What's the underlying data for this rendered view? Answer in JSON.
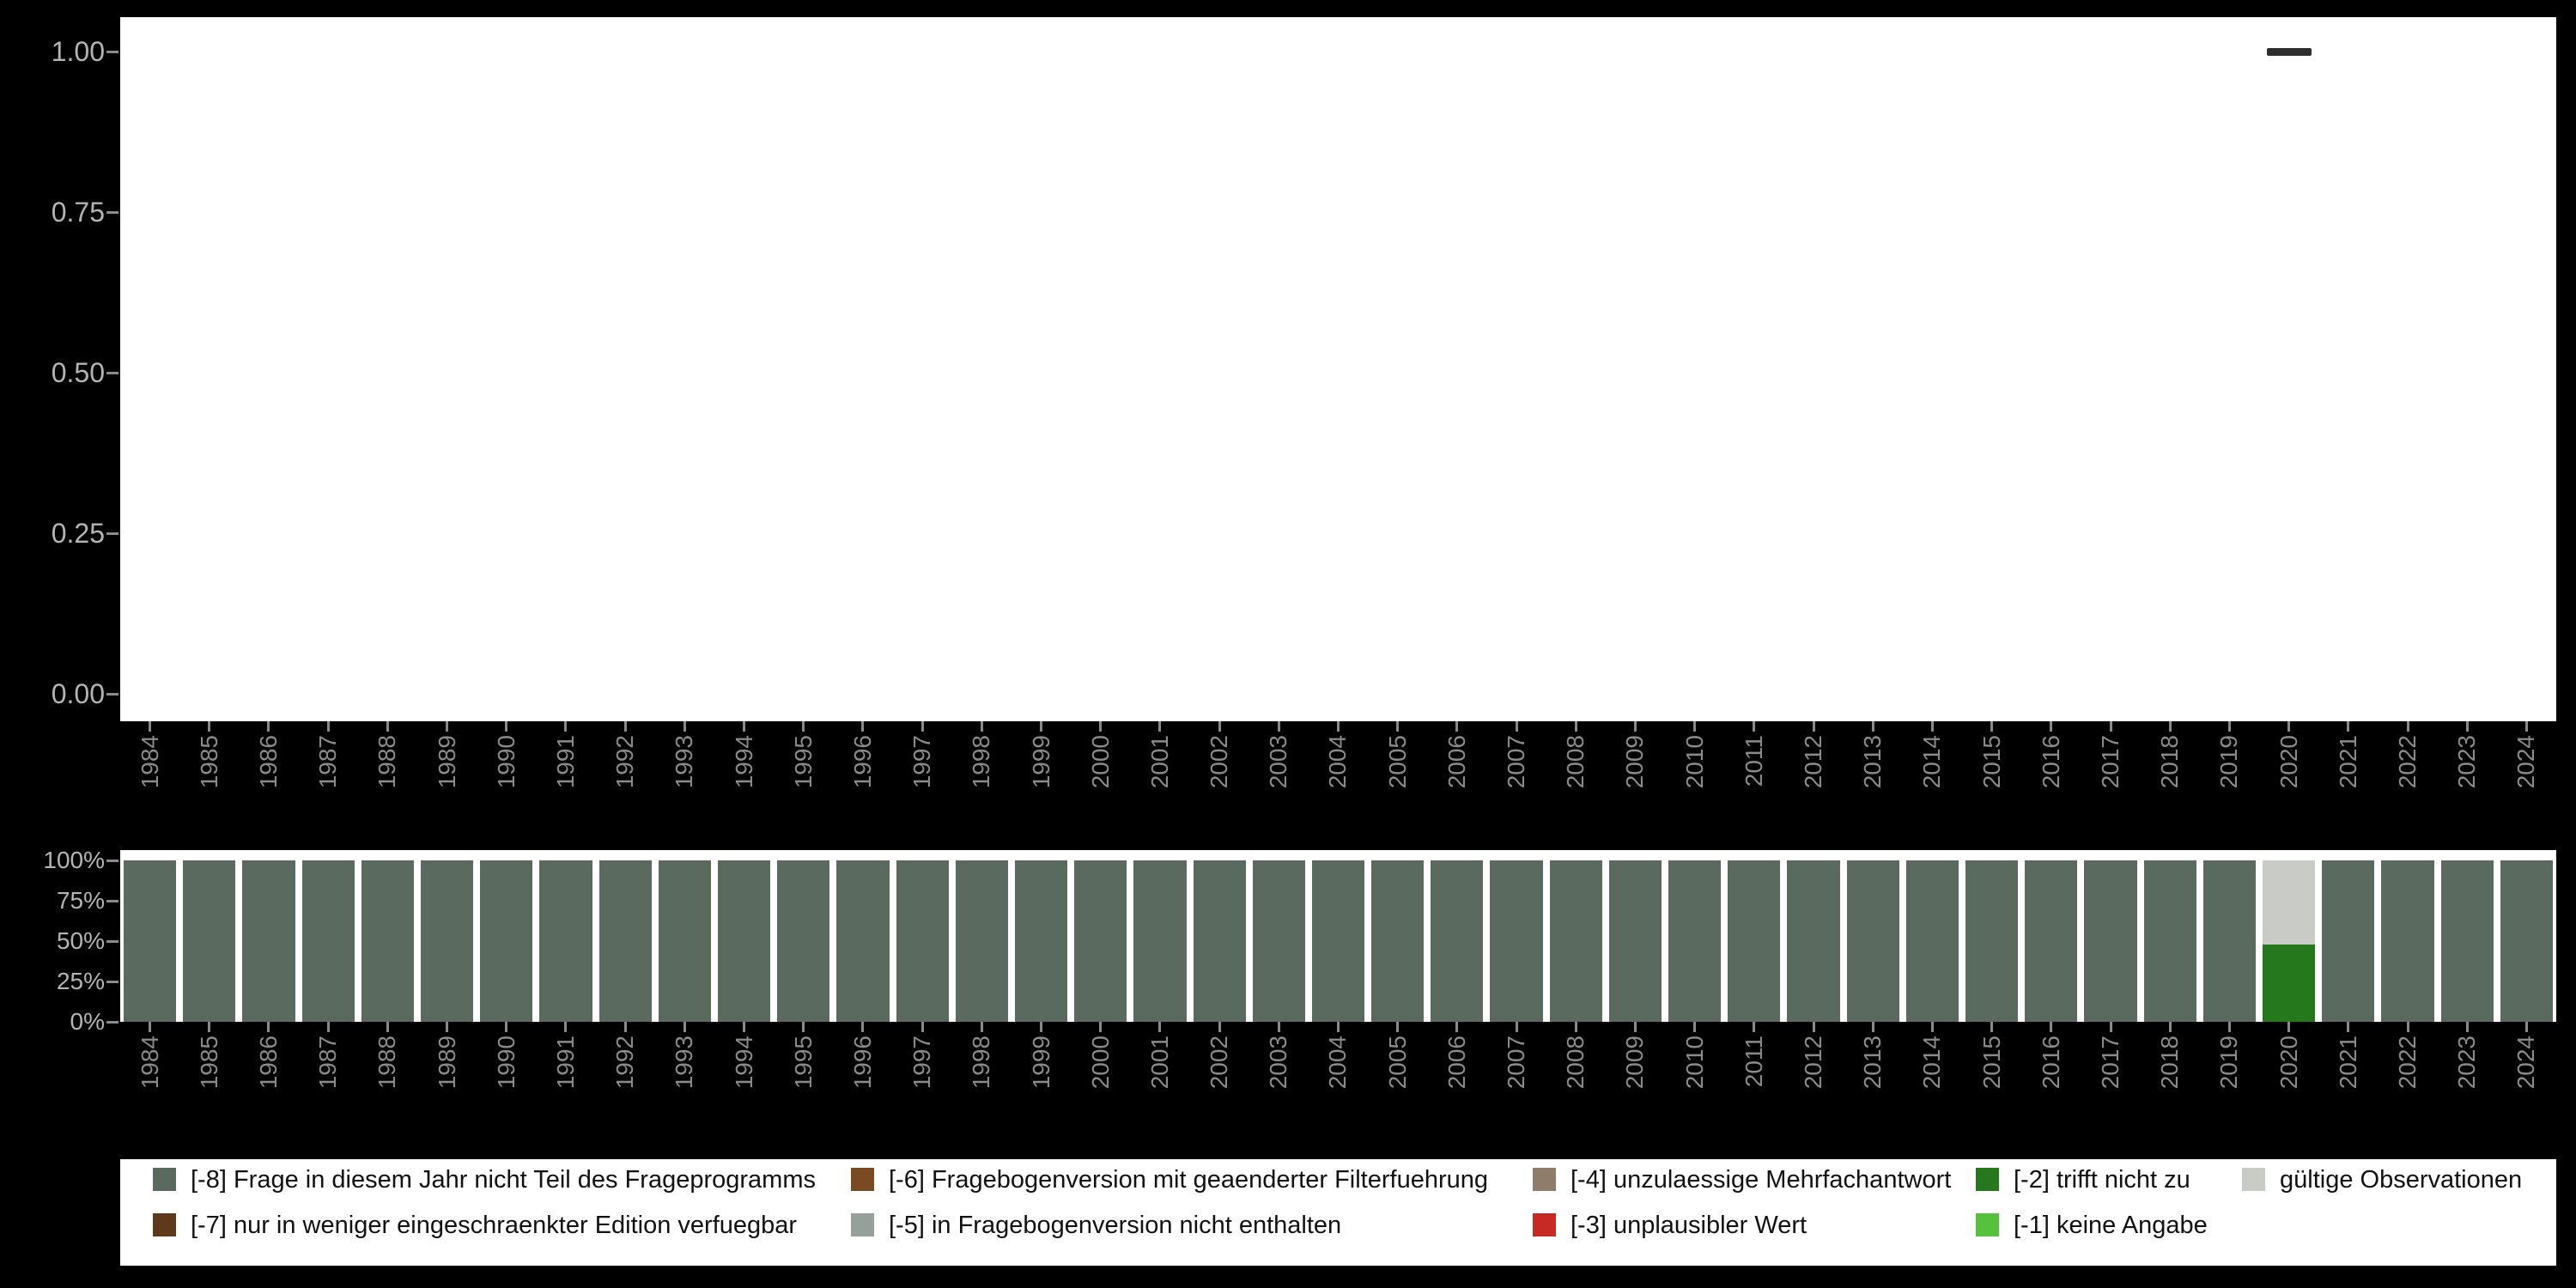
{
  "colors": {
    "background": "#000000",
    "panel": "#ffffff",
    "axis_text": "#8a8a8a",
    "axis_text_strong": "#b4b4b4",
    "tick": "#8a8a8a",
    "marker": "#2e2e2e",
    "legend_text": "#111111",
    "m8": "#5a6a5f",
    "m7": "#5e3a1d",
    "m6": "#7a4a22",
    "m5": "#95a09a",
    "m4": "#8f7d6c",
    "m3": "#c72a24",
    "m2": "#25791c",
    "m1": "#55c13c",
    "valid": "#c8cbc6"
  },
  "legend": {
    "rows": [
      [
        {
          "label": "[-8] Frage in diesem Jahr nicht Teil des Frageprogramms",
          "color_key": "m8"
        },
        {
          "label": "[-6] Fragebogenversion mit geaenderter Filterfuehrung",
          "color_key": "m6"
        },
        {
          "label": "[-4] unzulaessige Mehrfachantwort",
          "color_key": "m4"
        },
        {
          "label": "[-2] trifft nicht zu",
          "color_key": "m2"
        },
        {
          "label": "gültige Observationen",
          "color_key": "valid"
        }
      ],
      [
        {
          "label": "[-7] nur in weniger eingeschraenkter Edition verfuegbar",
          "color_key": "m7"
        },
        {
          "label": "[-5] in Fragebogenversion nicht enthalten",
          "color_key": "m5"
        },
        {
          "label": "[-3] unplausibler Wert",
          "color_key": "m3"
        },
        {
          "label": "[-1] keine Angabe",
          "color_key": "m1"
        }
      ]
    ]
  },
  "chart_data": [
    {
      "type": "scatter",
      "title": "",
      "xlabel": "",
      "ylabel": "",
      "grid": false,
      "ylim": [
        0.0,
        1.0
      ],
      "yticks": [
        "1.00",
        "0.75",
        "0.50",
        "0.25",
        "0.00"
      ],
      "marker": "horizontal-dash",
      "marker_color_key": "marker",
      "x": [
        "2020"
      ],
      "y": [
        1.0
      ],
      "x_categories": [
        "1984",
        "1985",
        "1986",
        "1987",
        "1988",
        "1989",
        "1990",
        "1991",
        "1992",
        "1993",
        "1994",
        "1995",
        "1996",
        "1997",
        "1998",
        "1999",
        "2000",
        "2001",
        "2002",
        "2003",
        "2004",
        "2005",
        "2006",
        "2007",
        "2008",
        "2009",
        "2010",
        "2011",
        "2012",
        "2013",
        "2014",
        "2015",
        "2016",
        "2017",
        "2018",
        "2019",
        "2020",
        "2021",
        "2022",
        "2023",
        "2024"
      ]
    },
    {
      "type": "bar",
      "stacked": true,
      "unit": "percent",
      "title": "",
      "xlabel": "",
      "ylabel": "",
      "legend_position": "bottom",
      "yticks": [
        "100%",
        "75%",
        "50%",
        "25%",
        "0%"
      ],
      "categories": [
        "1984",
        "1985",
        "1986",
        "1987",
        "1988",
        "1989",
        "1990",
        "1991",
        "1992",
        "1993",
        "1994",
        "1995",
        "1996",
        "1997",
        "1998",
        "1999",
        "2000",
        "2001",
        "2002",
        "2003",
        "2004",
        "2005",
        "2006",
        "2007",
        "2008",
        "2009",
        "2010",
        "2011",
        "2012",
        "2013",
        "2014",
        "2015",
        "2016",
        "2017",
        "2018",
        "2019",
        "2020",
        "2021",
        "2022",
        "2023",
        "2024"
      ],
      "series": [
        {
          "name": "[-8] Frage in diesem Jahr nicht Teil des Frageprogramms",
          "color_key": "m8",
          "values": [
            100,
            100,
            100,
            100,
            100,
            100,
            100,
            100,
            100,
            100,
            100,
            100,
            100,
            100,
            100,
            100,
            100,
            100,
            100,
            100,
            100,
            100,
            100,
            100,
            100,
            100,
            100,
            100,
            100,
            100,
            100,
            100,
            100,
            100,
            100,
            100,
            0,
            100,
            100,
            100,
            100
          ]
        },
        {
          "name": "[-2] trifft nicht zu",
          "color_key": "m2",
          "values": [
            0,
            0,
            0,
            0,
            0,
            0,
            0,
            0,
            0,
            0,
            0,
            0,
            0,
            0,
            0,
            0,
            0,
            0,
            0,
            0,
            0,
            0,
            0,
            0,
            0,
            0,
            0,
            0,
            0,
            0,
            0,
            0,
            0,
            0,
            0,
            0,
            48,
            0,
            0,
            0,
            0
          ]
        },
        {
          "name": "gültige Observationen",
          "color_key": "valid",
          "values": [
            0,
            0,
            0,
            0,
            0,
            0,
            0,
            0,
            0,
            0,
            0,
            0,
            0,
            0,
            0,
            0,
            0,
            0,
            0,
            0,
            0,
            0,
            0,
            0,
            0,
            0,
            0,
            0,
            0,
            0,
            0,
            0,
            0,
            0,
            0,
            0,
            52,
            0,
            0,
            0,
            0
          ]
        }
      ]
    }
  ]
}
